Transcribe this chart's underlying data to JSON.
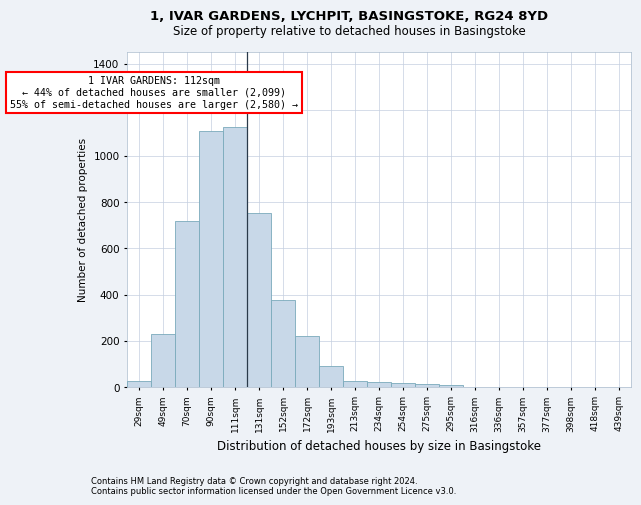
{
  "title": "1, IVAR GARDENS, LYCHPIT, BASINGSTOKE, RG24 8YD",
  "subtitle": "Size of property relative to detached houses in Basingstoke",
  "xlabel": "Distribution of detached houses by size in Basingstoke",
  "ylabel": "Number of detached properties",
  "bar_color": "#c8d8e8",
  "bar_edge_color": "#7aaabb",
  "categories": [
    "29sqm",
    "49sqm",
    "70sqm",
    "90sqm",
    "111sqm",
    "131sqm",
    "152sqm",
    "172sqm",
    "193sqm",
    "213sqm",
    "234sqm",
    "254sqm",
    "275sqm",
    "295sqm",
    "316sqm",
    "336sqm",
    "357sqm",
    "377sqm",
    "398sqm",
    "418sqm",
    "439sqm"
  ],
  "values": [
    25,
    230,
    720,
    1110,
    1125,
    755,
    375,
    220,
    90,
    28,
    20,
    17,
    15,
    8,
    0,
    0,
    0,
    0,
    0,
    0,
    0
  ],
  "ylim": [
    0,
    1450
  ],
  "yticks": [
    0,
    200,
    400,
    600,
    800,
    1000,
    1200,
    1400
  ],
  "property_line_x": 4.5,
  "annotation_line1": "1 IVAR GARDENS: 112sqm",
  "annotation_line2": "← 44% of detached houses are smaller (2,099)",
  "annotation_line3": "55% of semi-detached houses are larger (2,580) →",
  "footnote1": "Contains HM Land Registry data © Crown copyright and database right 2024.",
  "footnote2": "Contains public sector information licensed under the Open Government Licence v3.0.",
  "background_color": "#eef2f7",
  "plot_background": "#ffffff",
  "grid_color": "#c5cfe0"
}
